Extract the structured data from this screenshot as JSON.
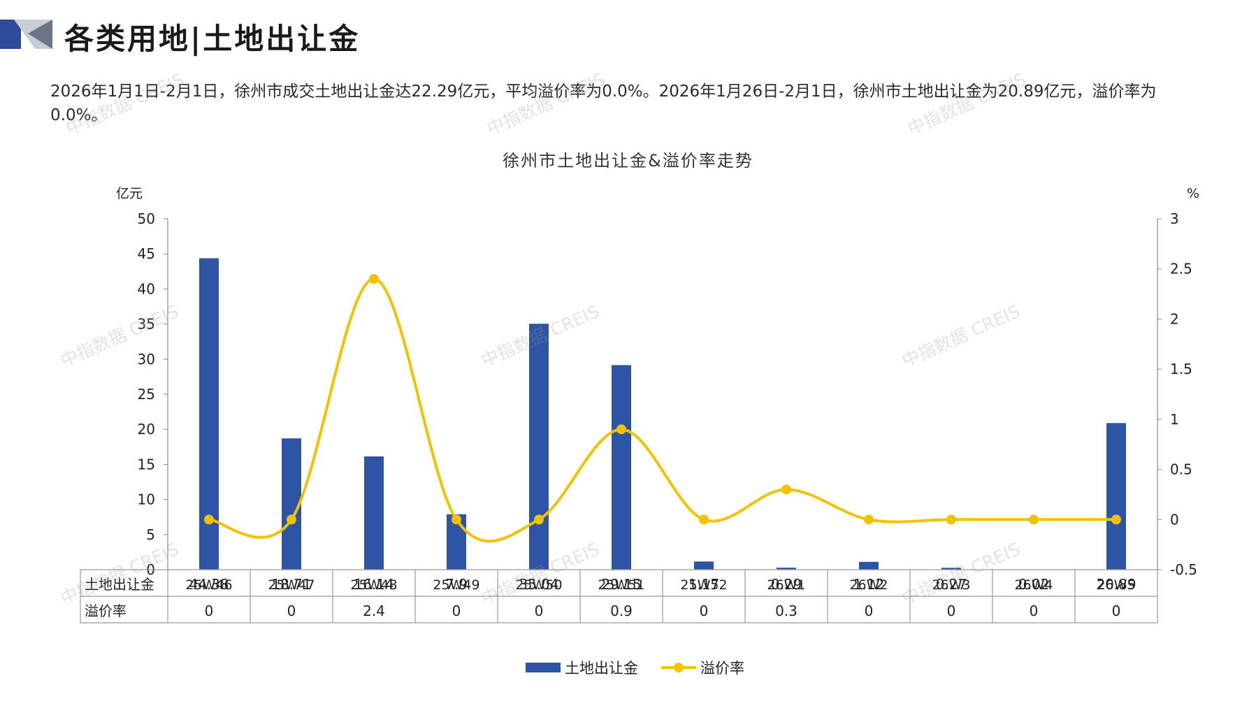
{
  "header": {
    "title": "各类用地|土地出让金"
  },
  "summary_text": "2026年1月1日-2月1日，徐州市成交土地出让金达22.29亿元，平均溢价率为0.0%。2026年1月26日-2月1日，徐州市土地出让金为20.89亿元，溢价率为0.0%。",
  "watermark_text": "中指数据 CREIS",
  "colors": {
    "bar": "#2E55A5",
    "line": "#F2C200",
    "logo_dark": "#2E4A9A",
    "logo_light": "#C9CDD6"
  },
  "chart_data": {
    "type": "bar+line",
    "title": "徐州市土地出让金&溢价率走势",
    "categories": [
      "25W46",
      "25W47",
      "25W48",
      "25W49",
      "25W50",
      "25W51",
      "25W52",
      "26W1",
      "26W2",
      "26W3",
      "26W4",
      "26W5"
    ],
    "series": [
      {
        "name": "土地出让金",
        "type": "bar",
        "axis": "left",
        "values": [
          44.38,
          18.71,
          16.14,
          7.9,
          35.04,
          29.15,
          1.17,
          0.29,
          1.12,
          0.27,
          0.02,
          20.89
        ],
        "labels": [
          "44.38",
          "18.71",
          "16.14",
          "7.9",
          "35.04",
          "29.15",
          "1.17",
          "0.29",
          "1.12",
          "0.27",
          "0.02",
          "20.89"
        ]
      },
      {
        "name": "溢价率",
        "type": "line",
        "axis": "right",
        "smooth": true,
        "values": [
          0,
          0,
          2.4,
          0,
          0,
          0.9,
          0,
          0.3,
          0,
          0,
          0,
          0
        ],
        "labels": [
          "0",
          "0",
          "2.4",
          "0",
          "0",
          "0.9",
          "0",
          "0.3",
          "0",
          "0",
          "0",
          "0"
        ]
      }
    ],
    "y_left": {
      "unit": "亿元",
      "min": 0,
      "max": 50,
      "ticks": [
        "0",
        "5",
        "10",
        "15",
        "20",
        "25",
        "30",
        "35",
        "40",
        "45",
        "50"
      ]
    },
    "y_right": {
      "unit": "%",
      "min": -0.5,
      "max": 3,
      "ticks": [
        "-0.5",
        "0",
        "0.5",
        "1",
        "1.5",
        "2",
        "2.5",
        "3"
      ]
    },
    "data_table": true,
    "grid": false,
    "legend_position": "bottom-center"
  }
}
